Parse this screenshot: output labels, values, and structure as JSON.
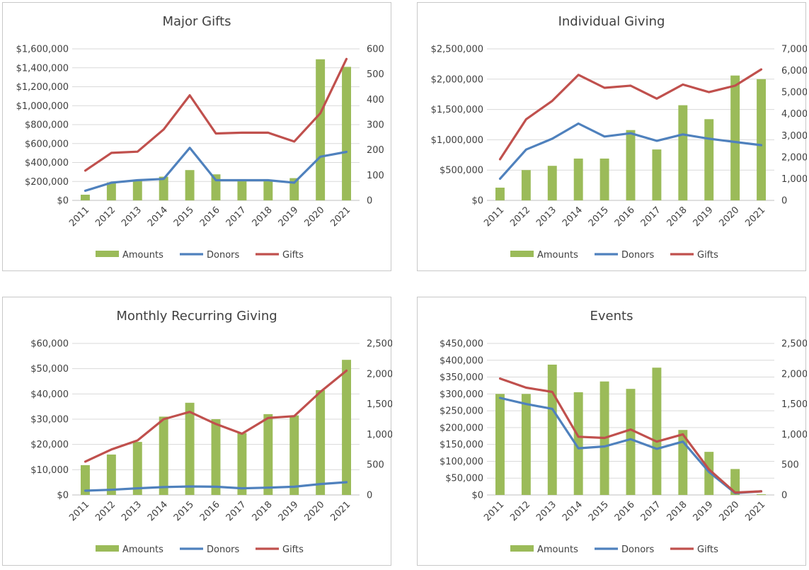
{
  "colors": {
    "amounts": "#9BBB59",
    "donors": "#4F81BD",
    "gifts": "#C0504D",
    "grid": "#d9d9d9",
    "axis": "#bfbfbf"
  },
  "chart_data": [
    {
      "type": "bar",
      "title": "Major Gifts",
      "categories": [
        "2011",
        "2012",
        "2013",
        "2014",
        "2015",
        "2016",
        "2017",
        "2018",
        "2019",
        "2020",
        "2021"
      ],
      "ylim": [
        0,
        1600000
      ],
      "y_ticks": [
        "$0",
        "$200,000",
        "$400,000",
        "$600,000",
        "$800,000",
        "$1,000,000",
        "$1,200,000",
        "$1,400,000",
        "$1,600,000"
      ],
      "y2lim": [
        0,
        600
      ],
      "y2_ticks": [
        "0",
        "100",
        "200",
        "300",
        "400",
        "500",
        "600"
      ],
      "legend_position": "bottom",
      "series": [
        {
          "name": "Amounts",
          "type": "bar",
          "axis": "left",
          "values": [
            60000,
            190000,
            215000,
            250000,
            320000,
            275000,
            210000,
            215000,
            235000,
            1490000,
            1410000
          ]
        },
        {
          "name": "Donors",
          "type": "line",
          "axis": "right",
          "values": [
            38,
            70,
            80,
            85,
            208,
            80,
            80,
            80,
            70,
            173,
            192
          ]
        },
        {
          "name": "Gifts",
          "type": "line",
          "axis": "right",
          "values": [
            118,
            188,
            193,
            281,
            416,
            265,
            268,
            268,
            233,
            345,
            560
          ]
        }
      ]
    },
    {
      "type": "bar",
      "title": "Individual Giving",
      "categories": [
        "2011",
        "2012",
        "2013",
        "2014",
        "2015",
        "2016",
        "2017",
        "2018",
        "2019",
        "2020",
        "2021"
      ],
      "ylim": [
        0,
        2500000
      ],
      "y_ticks": [
        "$0",
        "$500,000",
        "$1,000,000",
        "$1,500,000",
        "$2,000,000",
        "$2,500,000"
      ],
      "y2lim": [
        0,
        7000
      ],
      "y2_ticks": [
        "0",
        "1,000",
        "2,000",
        "3,000",
        "4,000",
        "5,000",
        "6,000",
        "7,000"
      ],
      "legend_position": "bottom",
      "series": [
        {
          "name": "Amounts",
          "type": "bar",
          "axis": "left",
          "values": [
            210000,
            500000,
            570000,
            690000,
            690000,
            1160000,
            840000,
            1570000,
            1340000,
            2060000,
            2000000
          ]
        },
        {
          "name": "Donors",
          "type": "line",
          "axis": "right",
          "values": [
            1000,
            2350,
            2850,
            3550,
            2950,
            3100,
            2750,
            3050,
            2850,
            2700,
            2550
          ]
        },
        {
          "name": "Gifts",
          "type": "line",
          "axis": "right",
          "values": [
            1900,
            3750,
            4600,
            5800,
            5200,
            5300,
            4700,
            5350,
            5000,
            5300,
            6050
          ]
        }
      ]
    },
    {
      "type": "bar",
      "title": "Monthly Recurring  Giving",
      "categories": [
        "2011",
        "2012",
        "2013",
        "2014",
        "2015",
        "2016",
        "2017",
        "2018",
        "2019",
        "2020",
        "2021"
      ],
      "ylim": [
        0,
        60000
      ],
      "y_ticks": [
        "$0",
        "$10,000",
        "$20,000",
        "$30,000",
        "$40,000",
        "$50,000",
        "$60,000"
      ],
      "y2lim": [
        0,
        2500
      ],
      "y2_ticks": [
        "0",
        "500",
        "1,000",
        "1,500",
        "2,000",
        "2,500"
      ],
      "legend_position": "bottom",
      "series": [
        {
          "name": "Amounts",
          "type": "bar",
          "axis": "left",
          "values": [
            11800,
            16000,
            21000,
            31000,
            36500,
            30000,
            24500,
            32000,
            31500,
            41500,
            53500
          ]
        },
        {
          "name": "Donors",
          "type": "line",
          "axis": "right",
          "values": [
            70,
            85,
            110,
            130,
            140,
            135,
            110,
            120,
            135,
            180,
            210
          ]
        },
        {
          "name": "Gifts",
          "type": "line",
          "axis": "right",
          "values": [
            550,
            750,
            900,
            1250,
            1370,
            1170,
            1010,
            1270,
            1300,
            1700,
            2050
          ]
        }
      ]
    },
    {
      "type": "bar",
      "title": "Events",
      "categories": [
        "2011",
        "2012",
        "2013",
        "2014",
        "2015",
        "2016",
        "2017",
        "2018",
        "2019",
        "2020",
        "2021"
      ],
      "ylim": [
        0,
        450000
      ],
      "y_ticks": [
        "$0",
        "$50,000",
        "$100,000",
        "$150,000",
        "$200,000",
        "$250,000",
        "$300,000",
        "$350,000",
        "$400,000",
        "$450,000"
      ],
      "y2lim": [
        0,
        2500
      ],
      "y2_ticks": [
        "0",
        "500",
        "1,000",
        "1,500",
        "2,000",
        "2,500"
      ],
      "legend_position": "bottom",
      "series": [
        {
          "name": "Amounts",
          "type": "bar",
          "axis": "left",
          "values": [
            300000,
            300000,
            387000,
            305000,
            337000,
            315000,
            378000,
            193000,
            128000,
            77000,
            2000
          ]
        },
        {
          "name": "Donors",
          "type": "line",
          "axis": "right",
          "values": [
            1600,
            1500,
            1420,
            770,
            800,
            920,
            760,
            880,
            380,
            30,
            60
          ]
        },
        {
          "name": "Gifts",
          "type": "line",
          "axis": "right",
          "values": [
            1920,
            1770,
            1700,
            960,
            940,
            1080,
            880,
            1000,
            420,
            40,
            60
          ]
        }
      ]
    }
  ]
}
